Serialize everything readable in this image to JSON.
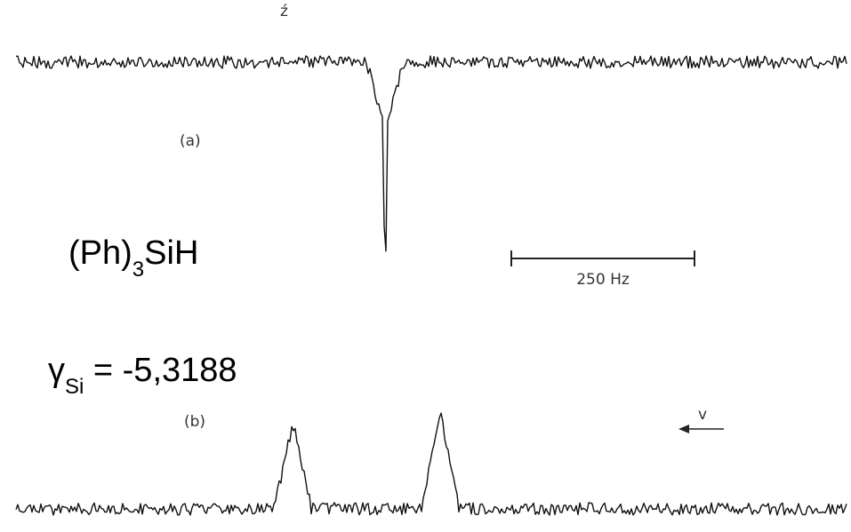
{
  "chart_data": [
    {
      "type": "line",
      "panel_label": "(a)",
      "title": "",
      "xlabel": "",
      "ylabel": "",
      "series": [
        {
          "values": [
            {
              "x": 0,
              "y": 0
            },
            {
              "x": 380,
              "y": 0
            },
            {
              "x": 398,
              "y": -0.2
            },
            {
              "x": 400,
              "y": -1.0
            },
            {
              "x": 402,
              "y": -0.2
            },
            {
              "x": 420,
              "y": 0
            },
            {
              "x": 900,
              "y": 0
            }
          ]
        }
      ],
      "annotations": {
        "peak": "inverted single line"
      }
    },
    {
      "type": "line",
      "panel_label": "(b)",
      "title": "",
      "xlabel": "",
      "ylabel": "",
      "series": [
        {
          "values": [
            {
              "x": 0,
              "y": 0
            },
            {
              "x": 280,
              "y": 0
            },
            {
              "x": 300,
              "y": 0.75
            },
            {
              "x": 320,
              "y": 0
            },
            {
              "x": 440,
              "y": 0
            },
            {
              "x": 460,
              "y": 0.85
            },
            {
              "x": 480,
              "y": 0
            },
            {
              "x": 900,
              "y": 0
            }
          ]
        }
      ],
      "annotations": {
        "peaks": "doublet"
      }
    }
  ],
  "scale_bar": {
    "label": "250 Hz",
    "value_hz": 250
  },
  "arrow_label": "v",
  "compound": {
    "main": "(Ph)",
    "subscript": "3",
    "suffix": "SiH"
  },
  "gamma": {
    "symbol": "γ",
    "subscript": "Si",
    "text": " = -5,3188"
  },
  "marks": {
    "stray": "ź"
  }
}
